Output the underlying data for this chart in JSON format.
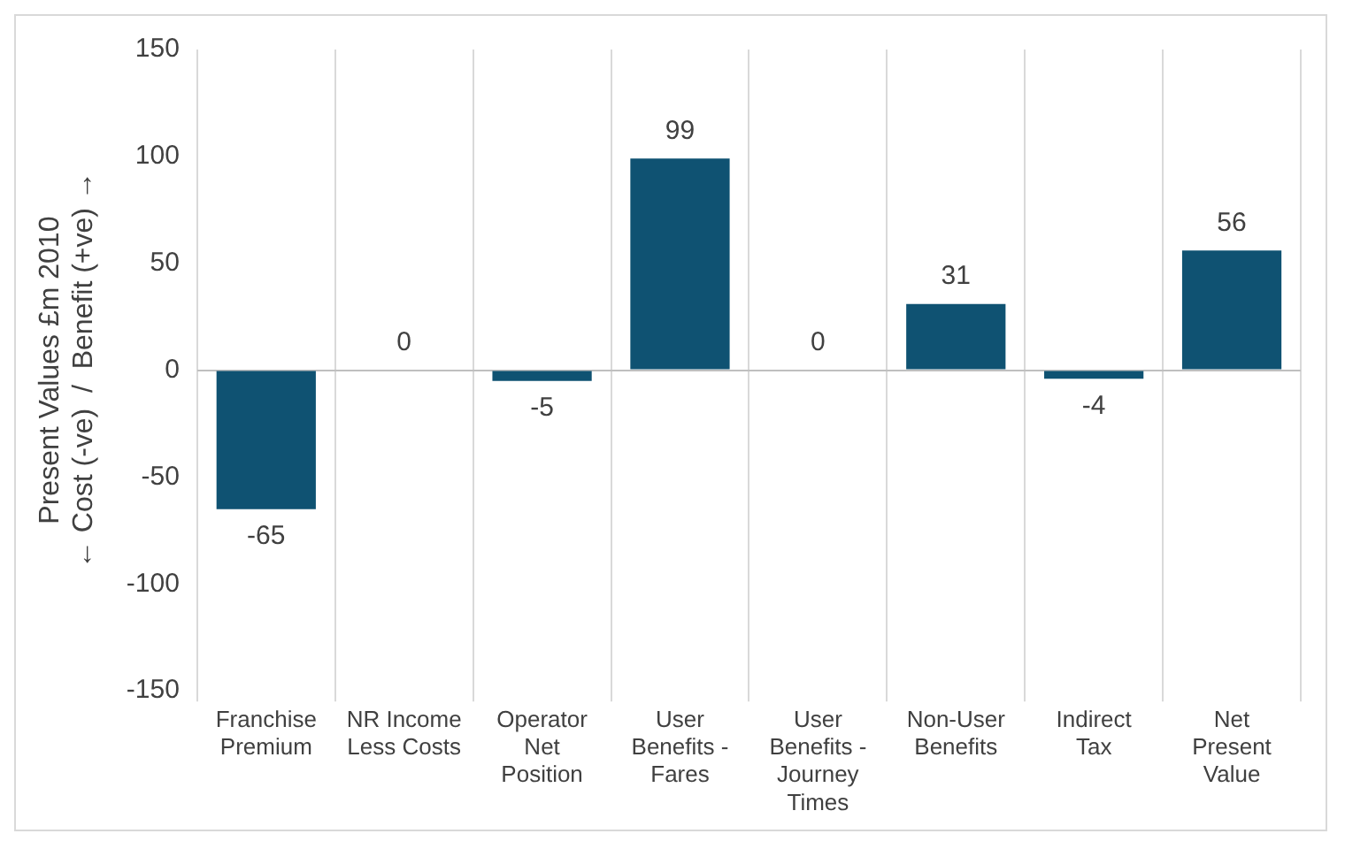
{
  "chart_data": {
    "type": "bar",
    "ylabel": "Present Values £m 2010\n← Cost (-ve)  /  Benefit (+ve) →",
    "categories": [
      "Franchise Premium",
      "NR Income Less Costs",
      "Operator Net Position",
      "User Benefits - Fares",
      "User Benefits - Journey Times",
      "Non-User Benefits",
      "Indirect Tax",
      "Net Present Value"
    ],
    "values": [
      -65,
      0,
      -5,
      99,
      0,
      31,
      -4,
      56
    ],
    "color": "#0f5272",
    "ylim": [
      -150,
      150
    ],
    "yticks": [
      -150,
      -100,
      -50,
      0,
      50,
      100,
      150
    ],
    "grid": "x",
    "data_labels": true,
    "legend": false
  }
}
